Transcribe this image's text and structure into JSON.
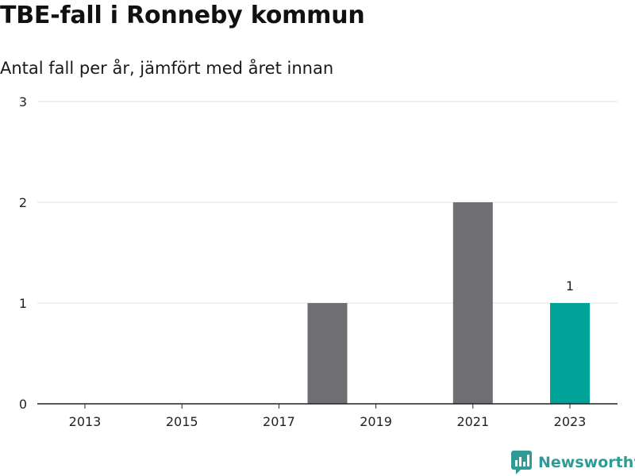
{
  "title": "TBE-fall i Ronneby kommun",
  "subtitle": "Antal fall per år, jämfört med året innan",
  "brand": {
    "name": "Newsworthy",
    "icon": "bar-chart-logo-icon",
    "color": "#2f9b94"
  },
  "chart_data": {
    "type": "bar",
    "categories": [
      "2013",
      "2014",
      "2015",
      "2016",
      "2017",
      "2018",
      "2019",
      "2020",
      "2021",
      "2022",
      "2023"
    ],
    "x_tick_labels": [
      "2013",
      "2015",
      "2017",
      "2019",
      "2021",
      "2023"
    ],
    "values": [
      0,
      0,
      0,
      0,
      0,
      1,
      0,
      0,
      2,
      0,
      1
    ],
    "ylim": [
      0,
      3
    ],
    "y_ticks": [
      0,
      1,
      2,
      3
    ],
    "grid": true,
    "legend": "none",
    "highlight_category": "2023",
    "highlight_label": "1",
    "colors": {
      "bar": "#6e6e73",
      "highlight": "#00a398",
      "grid": "#e2e2e2",
      "axis": "#222222"
    }
  }
}
